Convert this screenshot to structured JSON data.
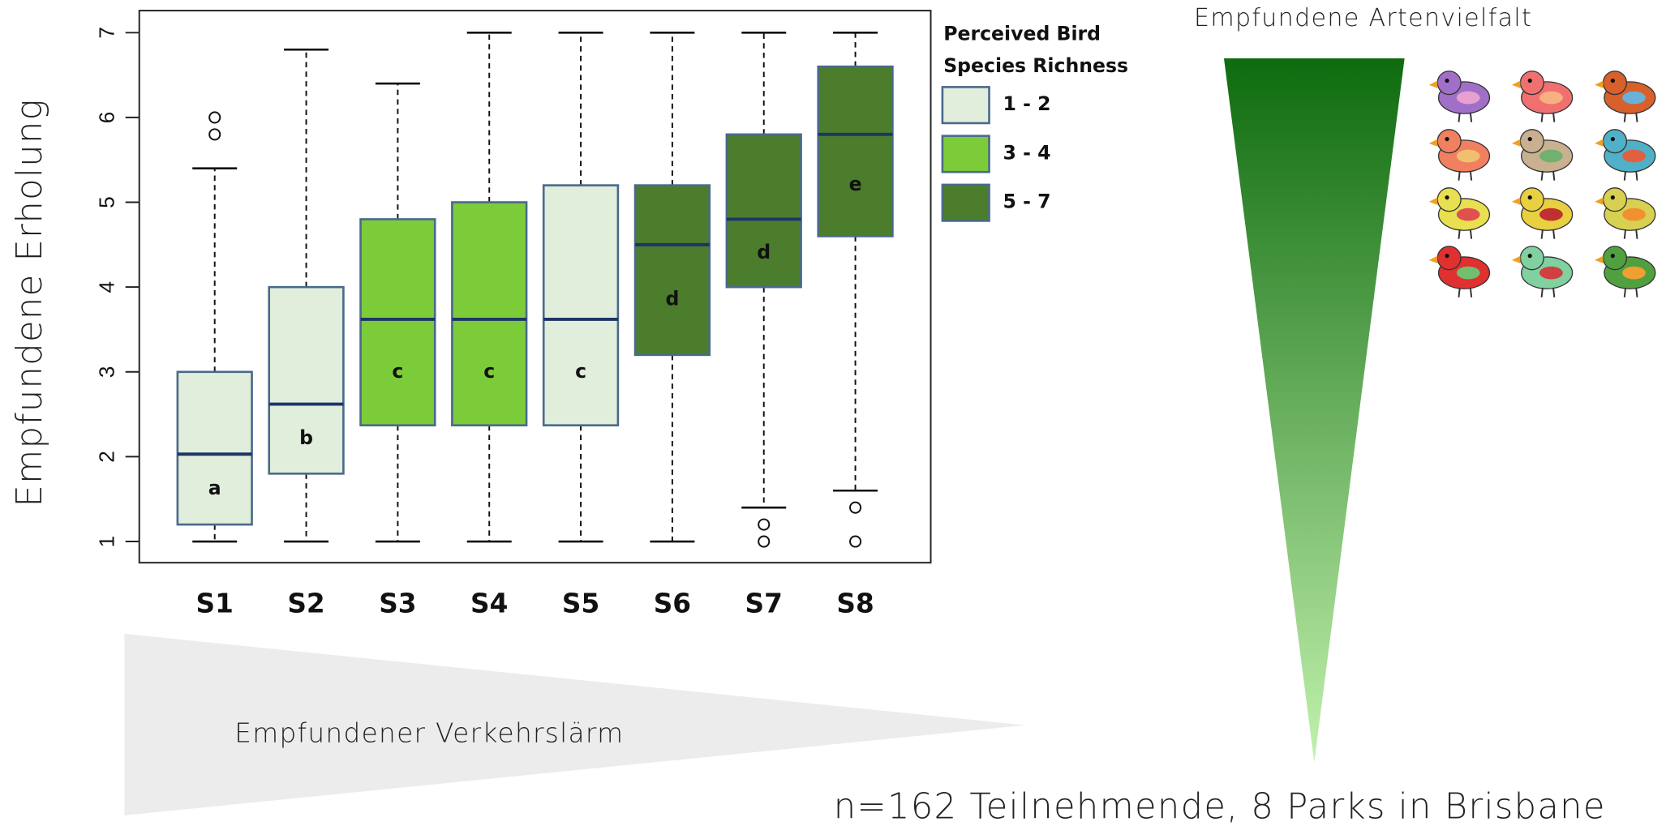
{
  "chart_data": {
    "type": "boxplot",
    "y_label": "Empfundene Erholung",
    "categories": [
      "S1",
      "S2",
      "S3",
      "S4",
      "S5",
      "S6",
      "S7",
      "S8"
    ],
    "boxes": [
      {
        "whisker_low": 1,
        "q1": 1.2,
        "median": 2.03,
        "q3": 3.0,
        "whisker_high": 5.4,
        "outliers": [
          5.8,
          6.0
        ],
        "label": "a",
        "color": "#e1eedc"
      },
      {
        "whisker_low": 1,
        "q1": 1.8,
        "median": 2.62,
        "q3": 4.0,
        "whisker_high": 6.8,
        "outliers": [],
        "label": "b",
        "color": "#e1eedc"
      },
      {
        "whisker_low": 1,
        "q1": 2.37,
        "median": 3.62,
        "q3": 4.8,
        "whisker_high": 6.4,
        "outliers": [],
        "label": "c",
        "color": "#7ccc3a"
      },
      {
        "whisker_low": 1,
        "q1": 2.37,
        "median": 3.62,
        "q3": 5.0,
        "whisker_high": 7,
        "outliers": [],
        "label": "c",
        "color": "#7ccc3a"
      },
      {
        "whisker_low": 1,
        "q1": 2.37,
        "median": 3.62,
        "q3": 5.2,
        "whisker_high": 7,
        "outliers": [],
        "label": "c",
        "color": "#e1eedc"
      },
      {
        "whisker_low": 1,
        "q1": 3.2,
        "median": 4.5,
        "q3": 5.2,
        "whisker_high": 7,
        "outliers": [],
        "label": "d",
        "color": "#4b7d2c"
      },
      {
        "whisker_low": 1.4,
        "q1": 4.0,
        "median": 4.8,
        "q3": 5.8,
        "whisker_high": 7,
        "outliers": [
          1.2,
          1.0
        ],
        "label": "d",
        "color": "#4b7d2c"
      },
      {
        "whisker_low": 1.6,
        "q1": 4.6,
        "median": 5.8,
        "q3": 6.6,
        "whisker_high": 7,
        "outliers": [
          1.4,
          1.0
        ],
        "label": "e",
        "color": "#4b7d2c"
      }
    ],
    "ylim": [
      0.75,
      7.26
    ],
    "yticks": [
      1,
      2,
      3,
      4,
      5,
      6,
      7
    ],
    "legend_title": [
      "Perceived Bird",
      "Species Richness"
    ],
    "legend": [
      {
        "name": "1 - 2",
        "color": "#e1eedc"
      },
      {
        "name": "3 - 4",
        "color": "#7ccc3a"
      },
      {
        "name": "5 - 7",
        "color": "#4b7d2c"
      }
    ],
    "annotations": [
      "Empfundene Artenvielfalt",
      "Empfundener Verkehrslärm",
      "n=162 Teilnehmende, 8 Parks in Brisbane"
    ]
  }
}
